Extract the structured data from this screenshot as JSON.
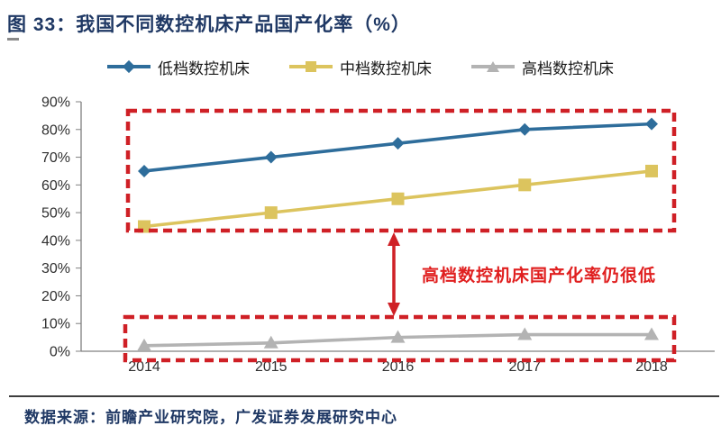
{
  "header": {
    "title": "图 33：我国不同数控机床产品国产化率（%）"
  },
  "legend": [
    {
      "label": "低档数控机床",
      "marker": "diamond",
      "color": "#2e6d9b"
    },
    {
      "label": "中档数控机床",
      "marker": "square",
      "color": "#dcc45e"
    },
    {
      "label": "高档数控机床",
      "marker": "triangle",
      "color": "#b3b3b3"
    }
  ],
  "chart_data": {
    "type": "line",
    "title": "图 33：我国不同数控机床产品国产化率（%）",
    "categories": [
      "2014",
      "2015",
      "2016",
      "2017",
      "2018"
    ],
    "series": [
      {
        "name": "低档数控机床",
        "values": [
          65,
          70,
          75,
          80,
          82
        ],
        "color": "#2e6d9b",
        "marker": "diamond"
      },
      {
        "name": "中档数控机床",
        "values": [
          45,
          50,
          55,
          60,
          65
        ],
        "color": "#dcc45e",
        "marker": "square"
      },
      {
        "name": "高档数控机床",
        "values": [
          2,
          3,
          5,
          6,
          6
        ],
        "color": "#b3b3b3",
        "marker": "triangle"
      }
    ],
    "xlabel": "",
    "ylabel": "",
    "ylim": [
      0,
      90
    ],
    "ytick_step": 10,
    "ytick_format": "percent",
    "grid": false,
    "legend_position": "top"
  },
  "annotation": {
    "text": "高档数控机床国产化率仍很低",
    "color": "#e01f1f"
  },
  "footer": {
    "source": "数据来源：前瞻产业研究院，广发证券发展研究中心"
  },
  "colors": {
    "title_navy": "#1f3864",
    "axis_line": "#808080",
    "tick_text": "#303030",
    "annotation_red": "#cf2026"
  }
}
